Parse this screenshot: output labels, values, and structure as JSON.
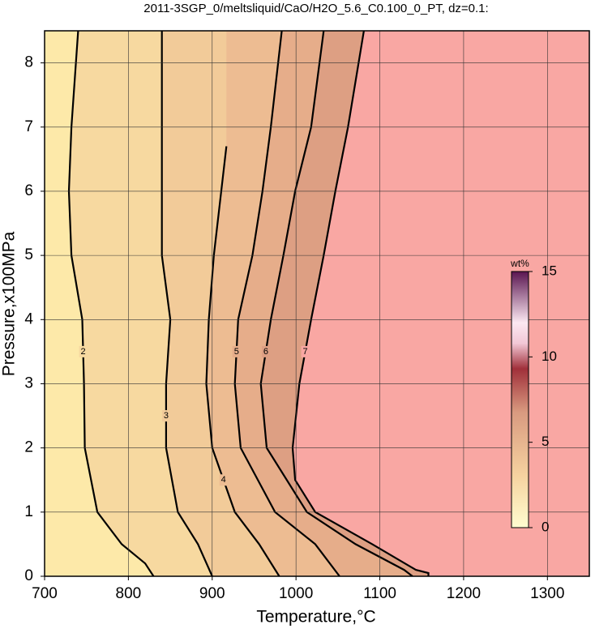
{
  "chart_data": {
    "type": "contour",
    "title": "2011-3SGP_0/meltsliquid/CaO/H2O_5.6_C0.100_0_PT, dz=0.1:",
    "xlabel": "Temperature,°C",
    "ylabel": "Pressure,x100MPa",
    "xlim": [
      700,
      1350
    ],
    "ylim": [
      0,
      8.5
    ],
    "xticks": [
      700,
      800,
      900,
      1000,
      1100,
      1200,
      1300
    ],
    "yticks": [
      0,
      1,
      2,
      3,
      4,
      5,
      6,
      7,
      8
    ],
    "grid": true,
    "background_color": "#fde9a9",
    "contours": [
      {
        "level": 2,
        "color": "#f7d9a0",
        "x": [
          740,
          732,
          729,
          732,
          745,
          747,
          748,
          763,
          792,
          820,
          830
        ],
        "y": [
          8.5,
          7,
          6,
          5,
          4,
          3,
          2,
          1,
          0.5,
          0.2,
          0
        ]
      },
      {
        "level": 3,
        "color": "#f2cb99",
        "x": [
          840,
          840,
          840,
          850,
          845,
          845,
          859,
          883,
          900
        ],
        "y": [
          8.5,
          7,
          5,
          4,
          3,
          2,
          1,
          0.5,
          0
        ]
      },
      {
        "level": 4,
        "color": "#edbc92",
        "x": [
          917,
          902,
          896,
          893,
          900,
          927,
          956,
          980
        ],
        "y": [
          6.7,
          5,
          4,
          3,
          2,
          1,
          0.5,
          0
        ]
      },
      {
        "level": 5,
        "color": "#e6ad8a",
        "x": [
          983,
          970,
          960,
          948,
          931,
          927,
          934,
          975,
          1023,
          1052
        ],
        "y": [
          8.5,
          7,
          6,
          5,
          4,
          3,
          2,
          1,
          0.5,
          0
        ]
      },
      {
        "level": 6,
        "color": "#dd9f83",
        "x": [
          1033,
          1018,
          999,
          985,
          970,
          958,
          965,
          1013,
          1071,
          1129,
          1139
        ],
        "y": [
          8.5,
          7,
          6,
          5,
          4,
          3,
          2,
          1,
          0.5,
          0.1,
          0
        ]
      },
      {
        "level": 7,
        "color": "#f9a7a3",
        "x": [
          1081,
          1062,
          1047,
          1033,
          1018,
          1004,
          996,
          999,
          1023,
          1091,
          1143,
          1158,
          1158
        ],
        "y": [
          8.5,
          7,
          6,
          5,
          4,
          3,
          2,
          1.5,
          1,
          0.5,
          0.1,
          0.05,
          0
        ]
      }
    ],
    "colorbar": {
      "label": "wt%",
      "lim": [
        0,
        15
      ],
      "ticks": [
        0,
        5,
        10,
        15
      ]
    }
  }
}
